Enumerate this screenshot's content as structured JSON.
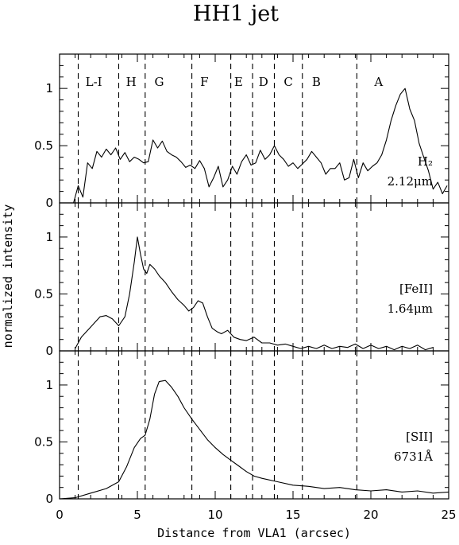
{
  "chart_data": {
    "type": "line",
    "title": "HH1 jet",
    "xlabel": "Distance from VLA1 (arcsec)",
    "ylabel": "normalized intensity",
    "xlim": [
      0,
      25
    ],
    "xticks": [
      "0",
      "5",
      "10",
      "15",
      "20",
      "25"
    ],
    "knots": [
      {
        "label": "L-I",
        "x": 2.2
      },
      {
        "label": "H",
        "x": 4.6
      },
      {
        "label": "G",
        "x": 6.4
      },
      {
        "label": "F",
        "x": 9.3
      },
      {
        "label": "E",
        "x": 11.5
      },
      {
        "label": "D",
        "x": 13.1
      },
      {
        "label": "C",
        "x": 14.7
      },
      {
        "label": "B",
        "x": 16.5
      },
      {
        "label": "A",
        "x": 20.5
      }
    ],
    "boundaries": [
      1.2,
      3.8,
      5.5,
      8.5,
      11.0,
      12.4,
      13.8,
      15.6,
      19.1
    ],
    "panels": [
      {
        "name": "H2",
        "label_lines": [
          "H₂",
          "2.12μm"
        ],
        "ylim": [
          0,
          1.3
        ],
        "yticks": [
          {
            "v": 0,
            "t": "0"
          },
          {
            "v": 0.5,
            "t": "0.5"
          },
          {
            "v": 1,
            "t": "1"
          }
        ],
        "x": [
          0.9,
          1.2,
          1.5,
          1.8,
          2.1,
          2.4,
          2.7,
          3.0,
          3.3,
          3.6,
          3.9,
          4.2,
          4.5,
          4.8,
          5.1,
          5.4,
          5.7,
          6.0,
          6.3,
          6.6,
          6.9,
          7.2,
          7.5,
          7.8,
          8.1,
          8.4,
          8.7,
          9.0,
          9.3,
          9.6,
          9.9,
          10.2,
          10.5,
          10.8,
          11.1,
          11.4,
          11.7,
          12.0,
          12.3,
          12.6,
          12.9,
          13.2,
          13.5,
          13.8,
          14.1,
          14.4,
          14.7,
          15.0,
          15.3,
          15.6,
          15.9,
          16.2,
          16.5,
          16.8,
          17.1,
          17.4,
          17.7,
          18.0,
          18.3,
          18.6,
          18.9,
          19.2,
          19.5,
          19.8,
          20.1,
          20.4,
          20.7,
          21.0,
          21.3,
          21.6,
          21.9,
          22.2,
          22.5,
          22.8,
          23.1,
          23.4,
          23.7,
          24.0,
          24.3,
          24.6,
          24.9
        ],
        "values": [
          0.0,
          0.15,
          0.05,
          0.35,
          0.3,
          0.45,
          0.4,
          0.47,
          0.42,
          0.48,
          0.38,
          0.44,
          0.36,
          0.4,
          0.38,
          0.35,
          0.36,
          0.55,
          0.48,
          0.54,
          0.45,
          0.42,
          0.4,
          0.36,
          0.31,
          0.33,
          0.3,
          0.37,
          0.3,
          0.14,
          0.22,
          0.32,
          0.14,
          0.2,
          0.32,
          0.25,
          0.36,
          0.42,
          0.33,
          0.35,
          0.46,
          0.38,
          0.42,
          0.5,
          0.42,
          0.38,
          0.32,
          0.35,
          0.3,
          0.34,
          0.38,
          0.45,
          0.4,
          0.35,
          0.25,
          0.3,
          0.3,
          0.35,
          0.2,
          0.22,
          0.38,
          0.22,
          0.35,
          0.28,
          0.32,
          0.35,
          0.42,
          0.55,
          0.72,
          0.85,
          0.95,
          1.0,
          0.82,
          0.72,
          0.52,
          0.4,
          0.28,
          0.12,
          0.18,
          0.08,
          0.15
        ]
      },
      {
        "name": "FeII",
        "label_lines": [
          "[FeII]",
          "1.64μm"
        ],
        "ylim": [
          0,
          1.3
        ],
        "yticks": [
          {
            "v": 0,
            "t": "0"
          },
          {
            "v": 0.5,
            "t": "0.5"
          },
          {
            "v": 1,
            "t": "1"
          }
        ],
        "x": [
          1.0,
          1.4,
          1.8,
          2.2,
          2.6,
          3.0,
          3.4,
          3.8,
          4.2,
          4.5,
          4.8,
          5.0,
          5.2,
          5.4,
          5.6,
          5.8,
          6.1,
          6.4,
          6.8,
          7.2,
          7.6,
          8.0,
          8.3,
          8.6,
          8.9,
          9.2,
          9.5,
          9.8,
          10.1,
          10.4,
          10.8,
          11.2,
          11.6,
          12.0,
          12.5,
          13.0,
          13.5,
          14.0,
          14.5,
          15.0,
          15.5,
          16.0,
          16.5,
          17.0,
          17.5,
          18.0,
          18.5,
          19.0,
          19.5,
          20.0,
          20.5,
          21.0,
          21.5,
          22.0,
          22.5,
          23.0,
          23.5,
          24.0
        ],
        "values": [
          0.02,
          0.12,
          0.18,
          0.24,
          0.3,
          0.31,
          0.28,
          0.22,
          0.3,
          0.5,
          0.78,
          1.0,
          0.85,
          0.72,
          0.68,
          0.76,
          0.72,
          0.66,
          0.6,
          0.52,
          0.45,
          0.4,
          0.35,
          0.38,
          0.44,
          0.42,
          0.3,
          0.2,
          0.17,
          0.15,
          0.18,
          0.12,
          0.1,
          0.09,
          0.12,
          0.07,
          0.07,
          0.05,
          0.06,
          0.04,
          0.02,
          0.04,
          0.02,
          0.05,
          0.02,
          0.04,
          0.03,
          0.06,
          0.02,
          0.05,
          0.02,
          0.04,
          0.01,
          0.04,
          0.02,
          0.05,
          0.01,
          0.03
        ]
      },
      {
        "name": "SII",
        "label_lines": [
          "[SII]",
          "6731Å"
        ],
        "ylim": [
          0,
          1.3
        ],
        "yticks": [
          {
            "v": 0,
            "t": "0"
          },
          {
            "v": 0.5,
            "t": "0.5"
          },
          {
            "v": 1,
            "t": "1"
          }
        ],
        "x": [
          0,
          1,
          2,
          3,
          3.8,
          4.3,
          4.8,
          5.2,
          5.5,
          5.8,
          6.1,
          6.4,
          6.8,
          7.2,
          7.6,
          8.0,
          8.5,
          9,
          9.5,
          10,
          10.5,
          11,
          11.5,
          12,
          12.5,
          13,
          14,
          15,
          16,
          17,
          18,
          19,
          20,
          21,
          22,
          23,
          24,
          25
        ],
        "values": [
          0.0,
          0.01,
          0.05,
          0.09,
          0.15,
          0.28,
          0.45,
          0.53,
          0.56,
          0.7,
          0.92,
          1.03,
          1.04,
          0.98,
          0.9,
          0.8,
          0.7,
          0.61,
          0.52,
          0.45,
          0.39,
          0.34,
          0.29,
          0.24,
          0.2,
          0.18,
          0.15,
          0.12,
          0.11,
          0.09,
          0.1,
          0.08,
          0.07,
          0.08,
          0.06,
          0.07,
          0.05,
          0.06
        ]
      }
    ]
  }
}
